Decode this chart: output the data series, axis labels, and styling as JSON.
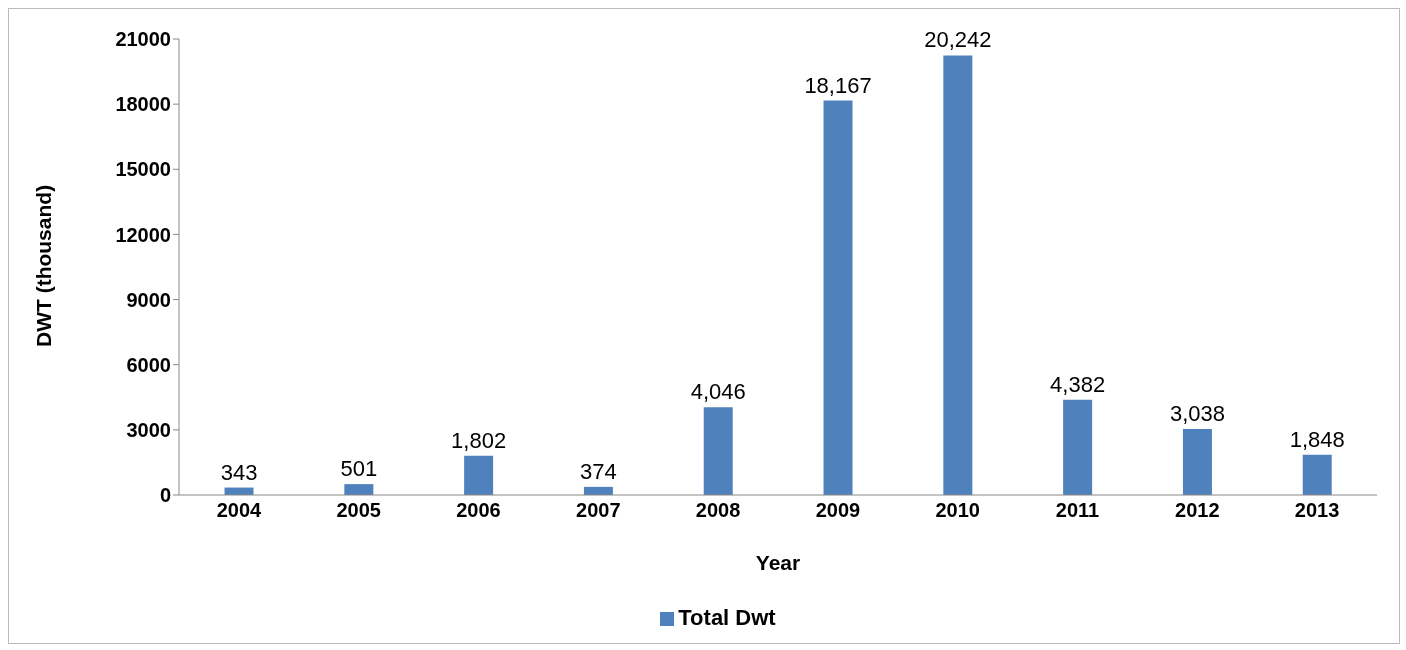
{
  "chart_data": {
    "type": "bar",
    "xlabel": "Year",
    "ylabel": "DWT (thousand)",
    "categories": [
      "2004",
      "2005",
      "2006",
      "2007",
      "2008",
      "2009",
      "2010",
      "2011",
      "2012",
      "2013"
    ],
    "series": [
      {
        "name": "Total Dwt",
        "color": "#4f81bd",
        "values": [
          343,
          501,
          1802,
          374,
          4046,
          18167,
          20242,
          4382,
          3038,
          1848
        ],
        "value_labels": [
          "343",
          "501",
          "1,802",
          "374",
          "4,046",
          "18,167",
          "20,242",
          "4,382",
          "3,038",
          "1,848"
        ]
      }
    ],
    "ylim": [
      0,
      21000
    ],
    "yticks": [
      0,
      3000,
      6000,
      9000,
      12000,
      15000,
      18000,
      21000
    ],
    "grid": false,
    "legend": "bottom"
  }
}
